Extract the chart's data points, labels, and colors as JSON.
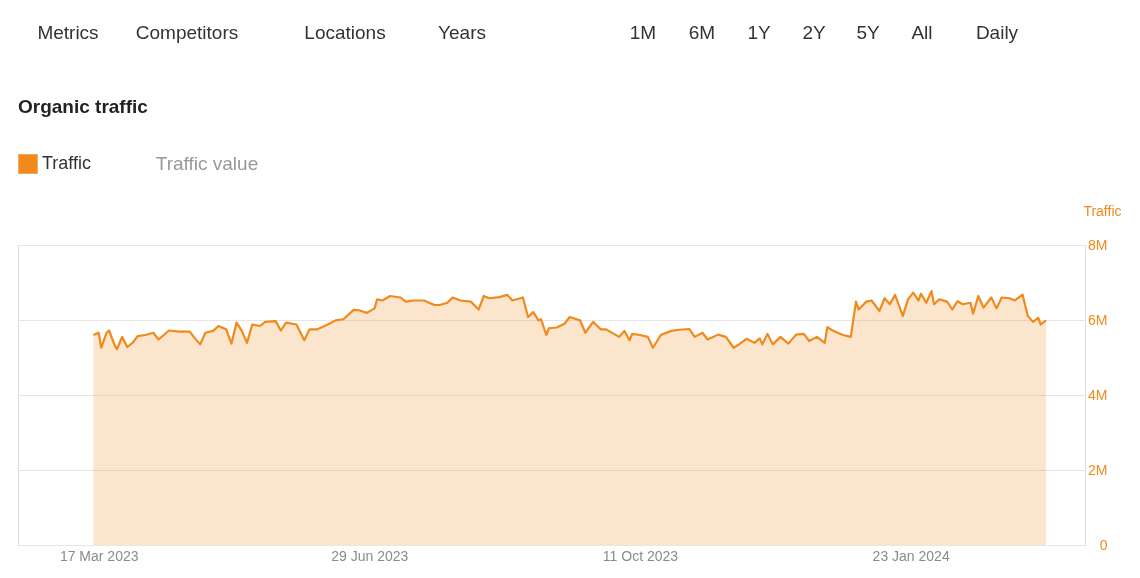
{
  "chart_data": {
    "type": "area",
    "title": "Organic traffic",
    "ylabel": "Traffic",
    "annotations": [
      "Metrics",
      "Competitors",
      "Locations",
      "Years",
      "1M",
      "6M",
      "1Y",
      "2Y",
      "5Y",
      "All",
      "Daily",
      "Traffic value"
    ],
    "xlim": [
      "2023-02-14",
      "2024-03-30"
    ],
    "xticks": [
      {
        "value": "2023-03-17",
        "label": "17 Mar 2023"
      },
      {
        "value": "2023-06-29",
        "label": "29 Jun 2023"
      },
      {
        "value": "2023-10-11",
        "label": "11 Oct 2023"
      },
      {
        "value": "2024-01-23",
        "label": "23 Jan 2024"
      }
    ],
    "ylim": [
      0,
      8
    ],
    "yticks": [
      {
        "value": 0,
        "label": "0"
      },
      {
        "value": 2,
        "label": "2M"
      },
      {
        "value": 4,
        "label": "4M"
      },
      {
        "value": 6,
        "label": "6M"
      },
      {
        "value": 8,
        "label": "8M"
      }
    ],
    "grid": "y",
    "legend": "top left",
    "series": [
      {
        "name": "Traffic",
        "color": "#f08a1c",
        "x": [
          "2023-03-15",
          "2023-03-17",
          "2023-03-18",
          "2023-03-20",
          "2023-03-21",
          "2023-03-23",
          "2023-03-24",
          "2023-03-26",
          "2023-03-28",
          "2023-03-30",
          "2023-04-01",
          "2023-04-04",
          "2023-04-07",
          "2023-04-09",
          "2023-04-13",
          "2023-04-17",
          "2023-04-21",
          "2023-04-23",
          "2023-04-25",
          "2023-04-27",
          "2023-04-30",
          "2023-05-02",
          "2023-05-05",
          "2023-05-07",
          "2023-05-09",
          "2023-05-11",
          "2023-05-13",
          "2023-05-15",
          "2023-05-18",
          "2023-05-20",
          "2023-05-24",
          "2023-05-26",
          "2023-05-28",
          "2023-06-01",
          "2023-06-04",
          "2023-06-06",
          "2023-06-09",
          "2023-06-13",
          "2023-06-16",
          "2023-06-19",
          "2023-06-23",
          "2023-06-25",
          "2023-06-28",
          "2023-07-01",
          "2023-07-02",
          "2023-07-04",
          "2023-07-07",
          "2023-07-11",
          "2023-07-13",
          "2023-07-16",
          "2023-07-20",
          "2023-07-24",
          "2023-07-26",
          "2023-07-29",
          "2023-07-31",
          "2023-08-03",
          "2023-08-07",
          "2023-08-10",
          "2023-08-12",
          "2023-08-14",
          "2023-08-18",
          "2023-08-21",
          "2023-08-23",
          "2023-08-27",
          "2023-08-29",
          "2023-08-31",
          "2023-09-02",
          "2023-09-03",
          "2023-09-05",
          "2023-09-06",
          "2023-09-09",
          "2023-09-12",
          "2023-09-14",
          "2023-09-18",
          "2023-09-20",
          "2023-09-23",
          "2023-09-24",
          "2023-09-26",
          "2023-09-28",
          "2023-10-01",
          "2023-10-03",
          "2023-10-05",
          "2023-10-07",
          "2023-10-08",
          "2023-10-11",
          "2023-10-14",
          "2023-10-16",
          "2023-10-19",
          "2023-10-23",
          "2023-10-26",
          "2023-10-30",
          "2023-11-01",
          "2023-11-04",
          "2023-11-06",
          "2023-11-10",
          "2023-11-13",
          "2023-11-16",
          "2023-11-18",
          "2023-11-21",
          "2023-11-24",
          "2023-11-26",
          "2023-11-27",
          "2023-11-29",
          "2023-12-01",
          "2023-12-04",
          "2023-12-07",
          "2023-12-10",
          "2023-12-13",
          "2023-12-15",
          "2023-12-18",
          "2023-12-21",
          "2023-12-22",
          "2023-12-24",
          "2023-12-28",
          "2023-12-31",
          "2024-01-02",
          "2024-01-03",
          "2024-01-06",
          "2024-01-08",
          "2024-01-11",
          "2024-01-13",
          "2024-01-15",
          "2024-01-17",
          "2024-01-20",
          "2024-01-22",
          "2024-01-24",
          "2024-01-26",
          "2024-01-27",
          "2024-01-29",
          "2024-01-31",
          "2024-02-01",
          "2024-02-03",
          "2024-02-06",
          "2024-02-08",
          "2024-02-10",
          "2024-02-12",
          "2024-02-15",
          "2024-02-16",
          "2024-02-18",
          "2024-02-20",
          "2024-02-23",
          "2024-02-25",
          "2024-02-27",
          "2024-03-01",
          "2024-03-03",
          "2024-03-06",
          "2024-03-08",
          "2024-03-10",
          "2024-03-12",
          "2024-03-13",
          "2024-03-15"
        ],
        "values": [
          5.6,
          5.66,
          5.26,
          5.66,
          5.72,
          5.35,
          5.22,
          5.55,
          5.28,
          5.39,
          5.57,
          5.6,
          5.66,
          5.48,
          5.72,
          5.69,
          5.69,
          5.51,
          5.35,
          5.66,
          5.71,
          5.84,
          5.75,
          5.37,
          5.93,
          5.71,
          5.39,
          5.88,
          5.84,
          5.95,
          5.97,
          5.72,
          5.93,
          5.88,
          5.46,
          5.75,
          5.75,
          5.88,
          5.99,
          6.02,
          6.27,
          6.26,
          6.19,
          6.31,
          6.55,
          6.52,
          6.64,
          6.6,
          6.49,
          6.52,
          6.52,
          6.4,
          6.4,
          6.46,
          6.6,
          6.52,
          6.49,
          6.28,
          6.64,
          6.58,
          6.61,
          6.67,
          6.52,
          6.6,
          6.08,
          6.21,
          5.99,
          6.02,
          5.6,
          5.78,
          5.8,
          5.9,
          6.08,
          5.99,
          5.66,
          5.95,
          5.88,
          5.75,
          5.75,
          5.63,
          5.55,
          5.71,
          5.46,
          5.63,
          5.6,
          5.55,
          5.26,
          5.6,
          5.71,
          5.74,
          5.76,
          5.55,
          5.66,
          5.48,
          5.61,
          5.55,
          5.26,
          5.35,
          5.5,
          5.39,
          5.51,
          5.35,
          5.63,
          5.35,
          5.55,
          5.37,
          5.61,
          5.63,
          5.44,
          5.55,
          5.39,
          5.81,
          5.72,
          5.6,
          5.55,
          6.49,
          6.28,
          6.49,
          6.52,
          6.24,
          6.58,
          6.42,
          6.67,
          6.11,
          6.55,
          6.73,
          6.52,
          6.7,
          6.46,
          6.77,
          6.42,
          6.55,
          6.49,
          6.28,
          6.5,
          6.42,
          6.46,
          6.17,
          6.64,
          6.33,
          6.6,
          6.31,
          6.6,
          6.58,
          6.52,
          6.68,
          6.11,
          5.95,
          6.06,
          5.88,
          5.99
        ]
      }
    ]
  }
}
